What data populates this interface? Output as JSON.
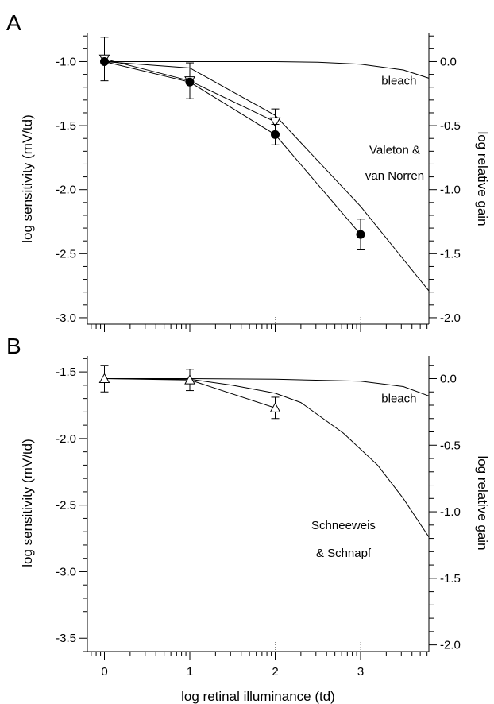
{
  "chart_data": [
    {
      "panel_label": "A",
      "type": "line",
      "xlabel": "",
      "ylabel": "log sensitivity (mV/td)",
      "ylabel_right": "log relative gain",
      "xlim": [
        -0.2,
        3.8
      ],
      "ylim": [
        -3.05,
        -0.78
      ],
      "ylim_right": [
        -2.05,
        0.22
      ],
      "xticks": [
        0,
        1,
        2,
        3
      ],
      "xtick_labels": [],
      "yticks": [
        -1.0,
        -1.5,
        -2.0,
        -2.5,
        -3.0
      ],
      "ytick_labels": [
        "-1.0",
        "-1.5",
        "-2.0",
        "-2.5",
        "-3.0"
      ],
      "yticks_right": [
        0.0,
        -0.5,
        -1.0,
        -1.5,
        -2.0
      ],
      "ytick_labels_right": [
        "0.0",
        "-0.5",
        "-1.0",
        "-1.5",
        "-2.0"
      ],
      "grid": false,
      "series": [
        {
          "style": "line",
          "x": [
            0,
            1,
            2,
            2.5,
            3,
            3.5,
            3.8
          ],
          "y": [
            -1.0,
            -1.0,
            -1.0,
            -1.005,
            -1.02,
            -1.065,
            -1.13
          ]
        },
        {
          "style": "line",
          "x": [
            0,
            1,
            2,
            3,
            3.8
          ],
          "y": [
            -1.0,
            -1.05,
            -1.42,
            -2.13,
            -2.79
          ]
        },
        {
          "style": "markers-line",
          "marker": "open-triangle-down",
          "x": [
            0,
            1,
            2
          ],
          "y": [
            -0.98,
            -1.15,
            -1.47
          ],
          "err": [
            0.17,
            0.14,
            0.1
          ]
        },
        {
          "style": "markers-line",
          "marker": "filled-circle",
          "x": [
            0,
            1,
            2,
            3
          ],
          "y": [
            -1.0,
            -1.16,
            -1.57,
            -2.35
          ],
          "err": [
            0.0,
            0.0,
            0.08,
            0.12
          ]
        }
      ],
      "annotations": [
        {
          "text": "bleach",
          "x": 3.45,
          "y": -1.18
        },
        {
          "text": "Valeton &",
          "x": 3.4,
          "y": -1.72
        },
        {
          "text": "van Norren",
          "x": 3.4,
          "y": -1.92
        }
      ]
    },
    {
      "panel_label": "B",
      "type": "line",
      "xlabel": "log retinal illuminance (td)",
      "ylabel": "log sensitivity (mV/td)",
      "ylabel_right": "log relative gain",
      "xlim": [
        -0.2,
        3.8
      ],
      "ylim": [
        -3.6,
        -1.38
      ],
      "ylim_right": [
        -2.05,
        0.17
      ],
      "xticks": [
        0,
        1,
        2,
        3
      ],
      "xtick_labels": [
        "0",
        "1",
        "2",
        "3"
      ],
      "yticks": [
        -1.5,
        -2.0,
        -2.5,
        -3.0,
        -3.5
      ],
      "ytick_labels": [
        "-1.5",
        "-2.0",
        "-2.5",
        "-3.0",
        "-3.5"
      ],
      "yticks_right": [
        0.0,
        -0.5,
        -1.0,
        -1.5,
        -2.0
      ],
      "ytick_labels_right": [
        "0.0",
        "-0.5",
        "-1.0",
        "-1.5",
        "-2.0"
      ],
      "grid": false,
      "series": [
        {
          "style": "line",
          "x": [
            0,
            1,
            2,
            3,
            3.5,
            3.8
          ],
          "y": [
            -1.55,
            -1.55,
            -1.555,
            -1.57,
            -1.61,
            -1.68
          ]
        },
        {
          "style": "line",
          "x": [
            0,
            1,
            1.5,
            2,
            2.3,
            2.8,
            3.2,
            3.5,
            3.8
          ],
          "y": [
            -1.55,
            -1.555,
            -1.6,
            -1.66,
            -1.73,
            -1.96,
            -2.2,
            -2.45,
            -2.74
          ]
        },
        {
          "style": "markers-line",
          "marker": "open-triangle-up",
          "x": [
            0,
            1,
            2
          ],
          "y": [
            -1.55,
            -1.56,
            -1.77
          ],
          "err": [
            0.1,
            0.08,
            0.08
          ]
        }
      ],
      "annotations": [
        {
          "text": "bleach",
          "x": 3.45,
          "y": -1.73
        },
        {
          "text": "Schneeweis",
          "x": 2.8,
          "y": -2.68
        },
        {
          "text": "& Schnapf",
          "x": 2.8,
          "y": -2.89
        }
      ]
    }
  ]
}
